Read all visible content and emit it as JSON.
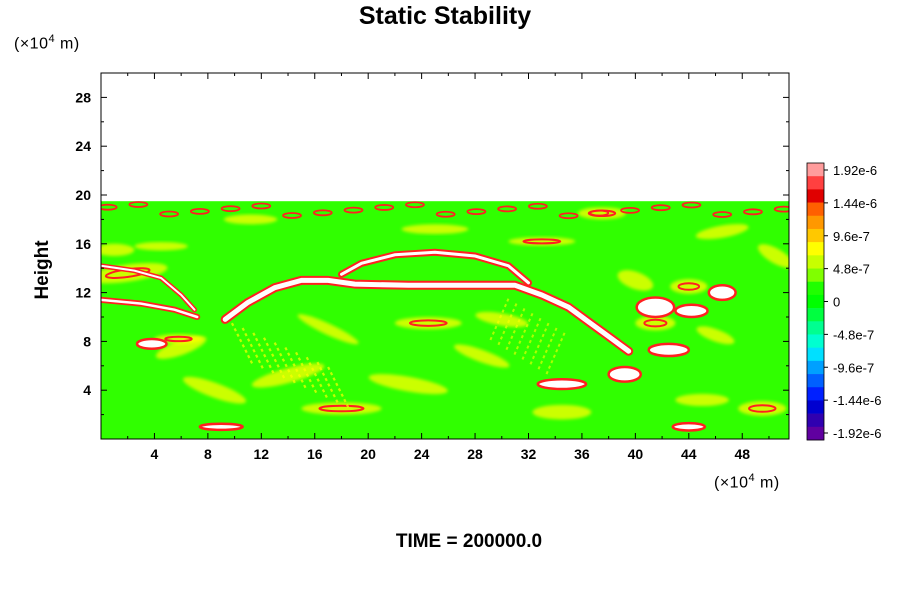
{
  "chart_data": {
    "type": "heatmap",
    "title": "Static Stability",
    "ylabel": "Height",
    "xlabel": "",
    "x_units_prefix": "(×10",
    "x_units_exp": "4",
    "x_units_suffix": " m)",
    "y_units_prefix": "(×10",
    "y_units_exp": "4",
    "y_units_suffix": " m)",
    "xlim": [
      0,
      51.5
    ],
    "ylim": [
      0,
      30
    ],
    "x_ticks": [
      4,
      8,
      12,
      16,
      20,
      24,
      28,
      32,
      36,
      40,
      44,
      48
    ],
    "y_ticks": [
      4,
      8,
      12,
      16,
      20,
      24,
      28
    ],
    "data_top": 19.5,
    "colorbar": {
      "levels": [
        "1.92e-6",
        "1.44e-6",
        "9.6e-7",
        "4.8e-7",
        "0",
        "-4.8e-7",
        "-9.6e-7",
        "-1.44e-6",
        "-1.92e-6"
      ],
      "colors": [
        "#ff9c9c",
        "#ff4040",
        "#e00000",
        "#ff6000",
        "#ff9800",
        "#ffc800",
        "#ffff00",
        "#c8ff00",
        "#80ff00",
        "#20ff00",
        "#00ff00",
        "#00ff40",
        "#00ff90",
        "#00ffd0",
        "#00e0ff",
        "#00a0ff",
        "#0060ff",
        "#0020ff",
        "#0000d0",
        "#3000b0",
        "#6000a0"
      ]
    },
    "features": {
      "background_color": "#30ff00",
      "positive_color": "#ff2020",
      "max_color": "#ffffff",
      "moderate_color": "#ffff00"
    }
  },
  "footer": {
    "time_label": "TIME = 200000.0"
  }
}
